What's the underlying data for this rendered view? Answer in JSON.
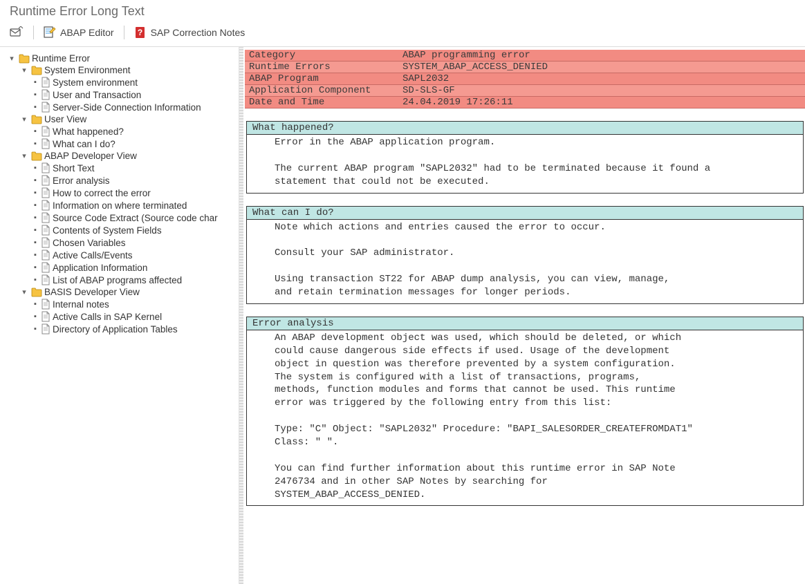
{
  "title": "Runtime Error Long Text",
  "toolbar": {
    "abap_editor": "ABAP Editor",
    "correction_notes": "SAP Correction Notes"
  },
  "colors": {
    "header_bg": "#f28b82",
    "header_bg_alt": "#f59a91",
    "header_border": "#c96a64",
    "section_title_bg": "#c0e6e4",
    "section_border": "#333333",
    "toolbar_border": "#dcdcdc",
    "folder_fill": "#f6c342",
    "folder_stroke": "#b8860b",
    "doc_stroke": "#888888",
    "question_red": "#d32f2f"
  },
  "tree": {
    "root": "Runtime Error",
    "groups": [
      {
        "label": "System Environment",
        "children": [
          "System environment",
          "User and Transaction",
          "Server-Side Connection Information"
        ]
      },
      {
        "label": "User View",
        "children": [
          "What happened?",
          "What can I do?"
        ]
      },
      {
        "label": "ABAP Developer View",
        "children": [
          "Short Text",
          "Error analysis",
          "How to correct the error",
          "Information on where terminated",
          "Source Code Extract (Source code char",
          "Contents of System Fields",
          "Chosen Variables",
          "Active Calls/Events",
          "Application Information",
          "List of ABAP programs affected"
        ]
      },
      {
        "label": "BASIS Developer View",
        "children": [
          "Internal notes",
          "Active Calls in SAP Kernel",
          "Directory of Application Tables"
        ]
      }
    ]
  },
  "header": [
    {
      "label": "Category",
      "value": "ABAP programming error"
    },
    {
      "label": "Runtime Errors",
      "value": "SYSTEM_ABAP_ACCESS_DENIED"
    },
    {
      "label": "ABAP Program",
      "value": "SAPL2032"
    },
    {
      "label": "Application Component",
      "value": "SD-SLS-GF"
    },
    {
      "label": "Date and Time",
      "value": "24.04.2019 17:26:11"
    }
  ],
  "sections": [
    {
      "title": "What happened?",
      "body": "Error in the ABAP application program.\n\nThe current ABAP program \"SAPL2032\" had to be terminated because it found a\nstatement that could not be executed."
    },
    {
      "title": "What can I do?",
      "body": "Note which actions and entries caused the error to occur.\n\nConsult your SAP administrator.\n\nUsing transaction ST22 for ABAP dump analysis, you can view, manage,\nand retain termination messages for longer periods."
    },
    {
      "title": "Error analysis",
      "body": "An ABAP development object was used, which should be deleted, or which\ncould cause dangerous side effects if used. Usage of the development\nobject in question was therefore prevented by a system configuration.\nThe system is configured with a list of transactions, programs,\nmethods, function modules and forms that cannot be used. This runtime\nerror was triggered by the following entry from this list:\n\nType: \"C\" Object: \"SAPL2032\" Procedure: \"BAPI_SALESORDER_CREATEFROMDAT1\"\n Class: \" \".\n\nYou can find further information about this runtime error in SAP Note\n2476734 and in other SAP Notes by searching for\nSYSTEM_ABAP_ACCESS_DENIED."
    }
  ]
}
